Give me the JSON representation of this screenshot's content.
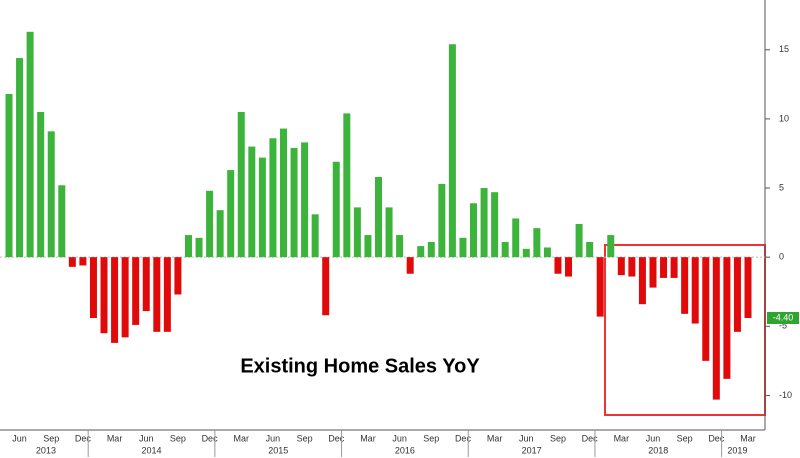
{
  "chart_data": {
    "type": "bar",
    "annotation": "Existing Home Sales YoY",
    "categories": [
      null,
      "Jun",
      null,
      null,
      "Sep",
      null,
      null,
      "Dec",
      null,
      null,
      "Mar",
      null,
      null,
      "Jun",
      null,
      null,
      "Sep",
      null,
      null,
      "Dec",
      null,
      null,
      "Mar",
      null,
      null,
      "Jun",
      null,
      null,
      "Sep",
      null,
      null,
      "Dec",
      null,
      null,
      "Mar",
      null,
      null,
      "Jun",
      null,
      null,
      "Sep",
      null,
      null,
      "Dec",
      null,
      null,
      "Mar",
      null,
      null,
      "Jun",
      null,
      null,
      "Sep",
      null,
      null,
      "Dec",
      null,
      null,
      "Mar",
      null,
      null,
      "Jun",
      null,
      null,
      "Sep",
      null,
      null,
      "Dec",
      null,
      null,
      "Mar"
    ],
    "years": [
      "2013",
      "2014",
      "2015",
      "2016",
      "2017",
      "2018",
      "2019"
    ],
    "values": [
      11.8,
      14.4,
      16.3,
      10.5,
      9.1,
      5.2,
      -0.7,
      -0.6,
      -4.4,
      -5.5,
      -6.2,
      -5.8,
      -4.9,
      -3.9,
      -5.4,
      -5.4,
      -2.7,
      1.6,
      1.4,
      4.8,
      3.4,
      6.3,
      10.5,
      8.0,
      7.2,
      8.6,
      9.3,
      7.9,
      8.3,
      3.1,
      -4.2,
      6.9,
      10.4,
      3.6,
      1.6,
      5.8,
      3.6,
      1.6,
      -1.2,
      0.8,
      1.1,
      5.3,
      15.4,
      1.4,
      3.9,
      5.0,
      4.7,
      1.1,
      2.8,
      0.6,
      2.1,
      0.7,
      -1.2,
      -1.4,
      2.4,
      1.1,
      -4.3,
      1.6,
      -1.3,
      -1.4,
      -3.4,
      -2.2,
      -1.5,
      -1.5,
      -4.1,
      -4.8,
      -7.5,
      -10.3,
      -8.8,
      -5.4,
      -4.4
    ],
    "positive_color": "#3cb43c",
    "negative_color": "#e00a0a",
    "ylim": [
      -12.5,
      18.6
    ],
    "yticks": [
      -10,
      -5,
      0,
      5,
      10,
      15
    ],
    "last_label": {
      "value": -4.4,
      "label": "-4.40"
    }
  }
}
